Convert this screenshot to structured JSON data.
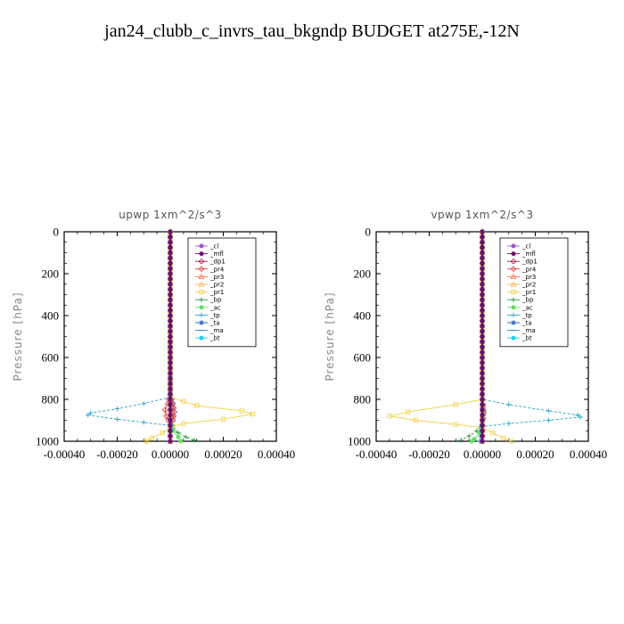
{
  "figure": {
    "title": "jan24_clubb_c_invrs_tau_bkgndp  BUDGET at275E,-12N"
  },
  "chart_data": [
    {
      "type": "line",
      "title": "upwp   1xm^2/s^3",
      "ylabel": "Pressure [hPa]",
      "xlabel": "",
      "xlim": [
        -0.0004,
        0.0004
      ],
      "ylim": [
        1000,
        0
      ],
      "xticks": [
        -0.0004,
        -0.0002,
        0.0,
        0.0002,
        0.0004
      ],
      "xtick_labels": [
        "-0.00040",
        "-0.00020",
        "0.00000",
        "0.00020",
        "0.00040"
      ],
      "yticks": [
        0,
        200,
        400,
        600,
        800,
        1000
      ],
      "ytick_labels": [
        "0",
        "200",
        "400",
        "600",
        "800",
        "1000"
      ],
      "legend_position": "top-right",
      "series": [
        {
          "name": "_cl",
          "color": "#9b59d0",
          "marker": "circle",
          "points": [
            [
              0,
              0
            ],
            [
              0,
              100
            ],
            [
              0,
              200
            ],
            [
              0,
              300
            ],
            [
              0,
              400
            ],
            [
              0,
              500
            ],
            [
              0,
              600
            ],
            [
              0,
              700
            ],
            [
              0,
              800
            ],
            [
              0,
              900
            ],
            [
              0,
              1000
            ]
          ]
        },
        {
          "name": "_mfl",
          "color": "#6a0f6e",
          "marker": "circle",
          "points": [
            [
              0,
              0
            ],
            [
              0,
              100
            ],
            [
              0,
              200
            ],
            [
              0,
              300
            ],
            [
              0,
              400
            ],
            [
              0,
              500
            ],
            [
              0,
              600
            ],
            [
              0,
              700
            ],
            [
              0,
              800
            ],
            [
              0,
              900
            ],
            [
              0,
              1000
            ]
          ]
        },
        {
          "name": "_dp1",
          "color": "#9e1a55",
          "marker": "diamond",
          "points": [
            [
              0,
              0
            ],
            [
              0,
              200
            ],
            [
              0,
              400
            ],
            [
              0,
              600
            ],
            [
              0,
              780
            ],
            [
              1e-05,
              820
            ],
            [
              1.5e-05,
              860
            ],
            [
              1e-05,
              900
            ],
            [
              0,
              950
            ],
            [
              0,
              1000
            ]
          ]
        },
        {
          "name": "_pr4",
          "color": "#d93a3a",
          "marker": "diamond",
          "points": [
            [
              0,
              0
            ],
            [
              0,
              400
            ],
            [
              0,
              780
            ],
            [
              -1e-05,
              820
            ],
            [
              -2e-05,
              850
            ],
            [
              -1.5e-05,
              880
            ],
            [
              0,
              920
            ],
            [
              0,
              1000
            ]
          ]
        },
        {
          "name": "_pr3",
          "color": "#ff6a3d",
          "marker": "triangle",
          "points": [
            [
              0,
              0
            ],
            [
              0,
              400
            ],
            [
              0,
              780
            ],
            [
              1e-05,
              840
            ],
            [
              1e-05,
              880
            ],
            [
              0,
              920
            ],
            [
              0,
              1000
            ]
          ]
        },
        {
          "name": "_pr2",
          "color": "#ffb347",
          "marker": "triangle",
          "points": [
            [
              0,
              0
            ],
            [
              0,
              400
            ],
            [
              0,
              790
            ],
            [
              -5e-06,
              850
            ],
            [
              0,
              900
            ],
            [
              0,
              1000
            ]
          ]
        },
        {
          "name": "_pr1",
          "color": "#f4d03f",
          "marker": "square",
          "points": [
            [
              0,
              0
            ],
            [
              0,
              200
            ],
            [
              0,
              400
            ],
            [
              0,
              600
            ],
            [
              0,
              790
            ],
            [
              0.0001,
              830
            ],
            [
              0.00027,
              855
            ],
            [
              0.00031,
              870
            ],
            [
              0.0002,
              895
            ],
            [
              5e-05,
              915
            ],
            [
              1e-05,
              930
            ],
            [
              -3e-05,
              960
            ],
            [
              -7e-05,
              985
            ],
            [
              -9e-05,
              1000
            ]
          ]
        },
        {
          "name": "_bp",
          "color": "#2e9c3a",
          "marker": "plus",
          "points": [
            [
              0,
              0
            ],
            [
              0,
              400
            ],
            [
              0,
              900
            ],
            [
              1e-05,
              940
            ],
            [
              3e-05,
              960
            ],
            [
              6e-05,
              980
            ],
            [
              9e-05,
              995
            ]
          ]
        },
        {
          "name": "_ac",
          "color": "#66dd66",
          "marker": "circle",
          "points": [
            [
              0,
              0
            ],
            [
              0,
              900
            ],
            [
              1e-05,
              950
            ],
            [
              3e-05,
              980
            ],
            [
              4e-05,
              1000
            ]
          ]
        },
        {
          "name": "_tp",
          "color": "#2aa0c9",
          "marker": "plus",
          "points": [
            [
              0,
              0
            ],
            [
              0,
              400
            ],
            [
              0,
              790
            ],
            [
              -0.0001,
              820
            ],
            [
              -0.0002,
              845
            ],
            [
              -0.0003,
              865
            ],
            [
              -0.00031,
              875
            ],
            [
              -0.0002,
              895
            ],
            [
              -0.0001,
              910
            ],
            [
              0,
              925
            ],
            [
              0,
              1000
            ]
          ]
        },
        {
          "name": "_ta",
          "color": "#1e5ab4",
          "marker": "star",
          "points": [
            [
              0,
              0
            ],
            [
              0,
              400
            ],
            [
              0,
              900
            ],
            [
              0,
              1000
            ]
          ]
        },
        {
          "name": "_ma",
          "color": "#2e86c1",
          "marker": "dash",
          "points": [
            [
              0,
              0
            ],
            [
              0,
              1000
            ]
          ]
        },
        {
          "name": "_bt",
          "color": "#22d3ee",
          "marker": "circle",
          "points": [
            [
              0,
              0
            ],
            [
              0,
              1000
            ]
          ]
        }
      ]
    },
    {
      "type": "line",
      "title": "vpwp   1xm^2/s^3",
      "ylabel": "Pressure [hPa]",
      "xlabel": "",
      "xlim": [
        -0.0004,
        0.0004
      ],
      "ylim": [
        1000,
        0
      ],
      "xticks": [
        -0.0004,
        -0.0002,
        0.0,
        0.0002,
        0.0004
      ],
      "xtick_labels": [
        "-0.00040",
        "-0.00020",
        "0.00000",
        "0.00020",
        "0.00040"
      ],
      "yticks": [
        0,
        200,
        400,
        600,
        800,
        1000
      ],
      "ytick_labels": [
        "0",
        "200",
        "400",
        "600",
        "800",
        "1000"
      ],
      "legend_position": "top-right",
      "series": [
        {
          "name": "_cl",
          "color": "#9b59d0",
          "marker": "circle",
          "points": [
            [
              0,
              0
            ],
            [
              0,
              100
            ],
            [
              0,
              200
            ],
            [
              0,
              300
            ],
            [
              0,
              400
            ],
            [
              0,
              500
            ],
            [
              0,
              600
            ],
            [
              0,
              700
            ],
            [
              0,
              800
            ],
            [
              0,
              900
            ],
            [
              0,
              1000
            ]
          ]
        },
        {
          "name": "_mfl",
          "color": "#6a0f6e",
          "marker": "circle",
          "points": [
            [
              0,
              0
            ],
            [
              0,
              100
            ],
            [
              0,
              200
            ],
            [
              0,
              300
            ],
            [
              0,
              400
            ],
            [
              0,
              500
            ],
            [
              0,
              600
            ],
            [
              0,
              700
            ],
            [
              0,
              800
            ],
            [
              0,
              900
            ],
            [
              0,
              1000
            ]
          ]
        },
        {
          "name": "_dp1",
          "color": "#9e1a55",
          "marker": "diamond",
          "points": [
            [
              0,
              0
            ],
            [
              0,
              400
            ],
            [
              0,
              800
            ],
            [
              5e-06,
              860
            ],
            [
              0,
              920
            ],
            [
              0,
              1000
            ]
          ]
        },
        {
          "name": "_pr4",
          "color": "#d93a3a",
          "marker": "diamond",
          "points": [
            [
              0,
              0
            ],
            [
              0,
              400
            ],
            [
              0,
              800
            ],
            [
              5e-06,
              850
            ],
            [
              0,
              900
            ],
            [
              0,
              1000
            ]
          ]
        },
        {
          "name": "_pr3",
          "color": "#ff6a3d",
          "marker": "triangle",
          "points": [
            [
              0,
              0
            ],
            [
              0,
              400
            ],
            [
              0,
              800
            ],
            [
              5e-06,
              860
            ],
            [
              0,
              920
            ],
            [
              0,
              1000
            ]
          ]
        },
        {
          "name": "_pr2",
          "color": "#ffb347",
          "marker": "triangle",
          "points": [
            [
              0,
              0
            ],
            [
              0,
              100
            ],
            [
              0,
              200
            ],
            [
              0,
              300
            ],
            [
              0,
              400
            ],
            [
              0,
              800
            ],
            [
              0,
              1000
            ]
          ]
        },
        {
          "name": "_pr1",
          "color": "#f4d03f",
          "marker": "square",
          "points": [
            [
              0,
              0
            ],
            [
              0,
              200
            ],
            [
              0,
              400
            ],
            [
              0,
              600
            ],
            [
              0,
              800
            ],
            [
              -0.0001,
              825
            ],
            [
              -0.00028,
              860
            ],
            [
              -0.00035,
              880
            ],
            [
              -0.00025,
              900
            ],
            [
              -0.0001,
              920
            ],
            [
              0,
              935
            ],
            [
              4e-05,
              960
            ],
            [
              8e-05,
              985
            ],
            [
              0.00011,
              1000
            ]
          ]
        },
        {
          "name": "_bp",
          "color": "#2e9c3a",
          "marker": "plus",
          "points": [
            [
              0,
              0
            ],
            [
              0,
              400
            ],
            [
              0,
              920
            ],
            [
              -2e-05,
              950
            ],
            [
              -5e-05,
              975
            ],
            [
              -8e-05,
              995
            ]
          ]
        },
        {
          "name": "_ac",
          "color": "#66dd66",
          "marker": "circle",
          "points": [
            [
              0,
              0
            ],
            [
              0,
              900
            ],
            [
              -1e-05,
              960
            ],
            [
              -3e-05,
              990
            ],
            [
              -4e-05,
              1000
            ]
          ]
        },
        {
          "name": "_tp",
          "color": "#2aa0c9",
          "marker": "plus",
          "points": [
            [
              0,
              0
            ],
            [
              0,
              400
            ],
            [
              0,
              800
            ],
            [
              0.0001,
              825
            ],
            [
              0.00025,
              855
            ],
            [
              0.00036,
              875
            ],
            [
              0.00037,
              885
            ],
            [
              0.00025,
              900
            ],
            [
              0.0001,
              915
            ],
            [
              0,
              930
            ],
            [
              -1e-05,
              1000
            ]
          ]
        },
        {
          "name": "_ta",
          "color": "#1e5ab4",
          "marker": "star",
          "points": [
            [
              0,
              0
            ],
            [
              0,
              150
            ],
            [
              0,
              200
            ],
            [
              0,
              250
            ],
            [
              0,
              400
            ],
            [
              0,
              1000
            ]
          ]
        },
        {
          "name": "_ma",
          "color": "#2e86c1",
          "marker": "dash",
          "points": [
            [
              0,
              0
            ],
            [
              0,
              1000
            ]
          ]
        },
        {
          "name": "_bt",
          "color": "#22d3ee",
          "marker": "circle",
          "points": [
            [
              0,
              0
            ],
            [
              0,
              1000
            ]
          ]
        }
      ]
    }
  ]
}
